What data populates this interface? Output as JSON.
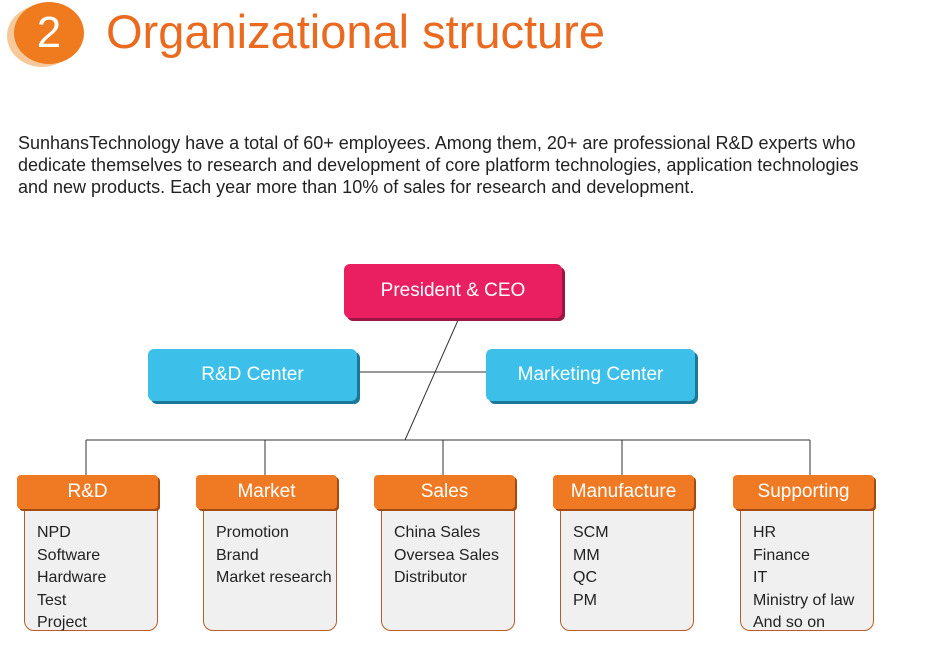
{
  "header": {
    "number": "2",
    "title": "Organizational structure"
  },
  "intro": "SunhansTechnology have a total of 60+ employees. Among them, 20+ are professional R&D experts who dedicate themselves to research and development of core platform technologies, application technologies and new products. Each year more than 10% of sales for research and development.",
  "chart": {
    "root": "President & CEO",
    "centers": [
      "R&D Center",
      "Marketing Center"
    ],
    "departments": [
      {
        "name": "R&D",
        "items": [
          "NPD",
          "Software",
          "Hardware",
          "Test",
          "Project"
        ]
      },
      {
        "name": "Market",
        "items": [
          "Promotion",
          "Brand",
          "Market research"
        ]
      },
      {
        "name": "Sales",
        "items": [
          "China Sales",
          "Oversea Sales",
          "Distributor"
        ]
      },
      {
        "name": "Manufacture",
        "items": [
          "SCM",
          "MM",
          "QC",
          "PM"
        ]
      },
      {
        "name": "Supporting",
        "items": [
          "HR",
          "Finance",
          "IT",
          "Ministry of law",
          "And so on"
        ]
      }
    ]
  },
  "colors": {
    "accent_orange": "#f07a24",
    "ceo_box": "#ea1f62",
    "center_box": "#3cc0ea"
  }
}
